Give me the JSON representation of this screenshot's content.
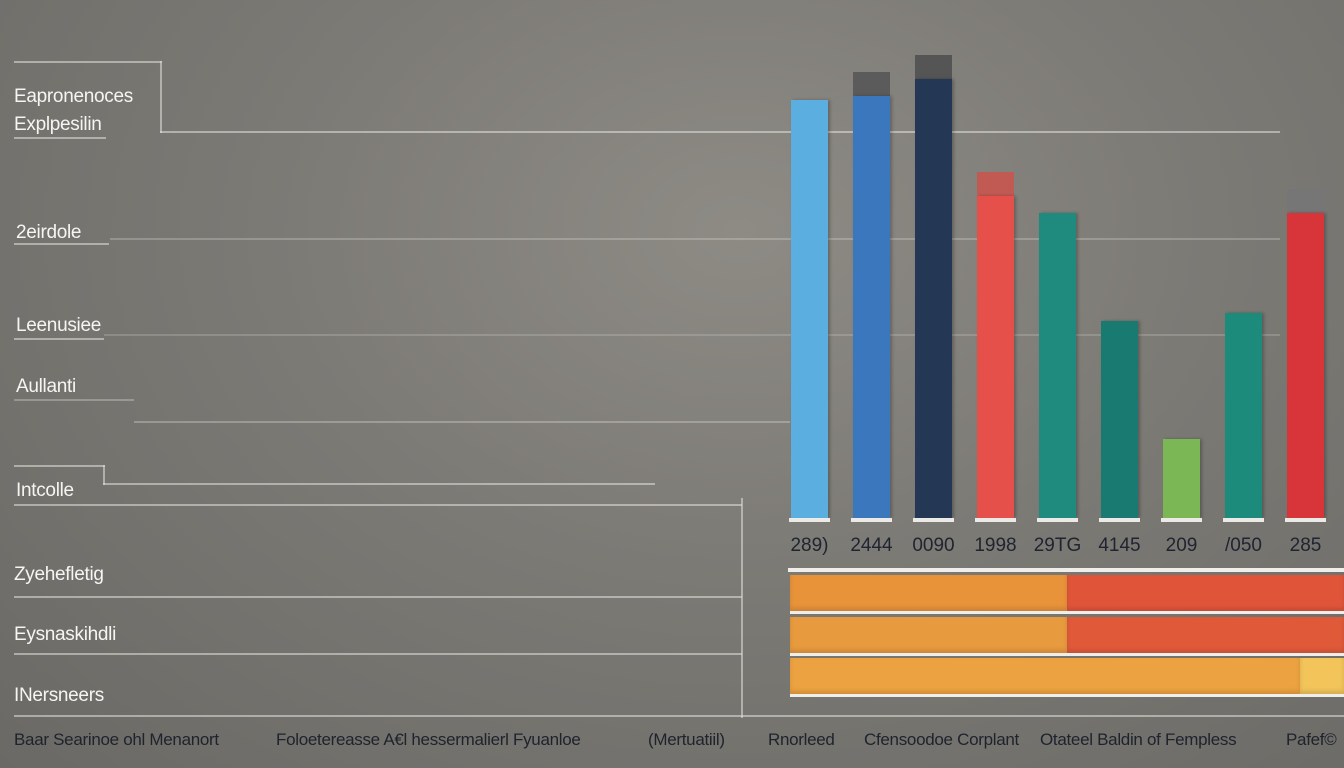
{
  "chart_data": {
    "type": "bar",
    "row_labels": [
      "Eapronenoces",
      "Explpesilin",
      "2eirdole",
      "Leenusiee",
      "Aullanti",
      "Intcolle",
      "Zyehefletig",
      "Eysnaskihdli",
      "INersneers"
    ],
    "bar_value_labels": [
      "289)",
      "2444",
      "0090",
      "1998",
      "29TG",
      "4145",
      "209",
      "/050",
      "285"
    ],
    "bars": [
      {
        "value": 100,
        "color": "#5aaee0",
        "cap": null
      },
      {
        "value": 101,
        "color": "#3a77bd",
        "cap": "#5b5b5b"
      },
      {
        "value": 105,
        "color": "#243754",
        "cap": "#555555"
      },
      {
        "value": 77,
        "color": "#e5514a",
        "cap": "#c05a52"
      },
      {
        "value": 73,
        "color": "#1f8a7e",
        "cap": null
      },
      {
        "value": 47,
        "color": "#187a70",
        "cap": null
      },
      {
        "value": 19,
        "color": "#7bb754",
        "cap": null
      },
      {
        "value": 49,
        "color": "#1d8b7b",
        "cap": null
      },
      {
        "value": 73,
        "color": "#d8353a",
        "cap": "#767676"
      }
    ],
    "stacked_rows": [
      [
        {
          "value": 50,
          "color": "#e8923a"
        },
        {
          "value": 50,
          "color": "#e0553a"
        }
      ],
      [
        {
          "value": 50,
          "color": "#e89a3e"
        },
        {
          "value": 50,
          "color": "#e05a3a"
        }
      ],
      [
        {
          "value": 92,
          "color": "#eca240"
        },
        {
          "value": 8,
          "color": "#f2c45a"
        }
      ]
    ],
    "x_axis_labels": [
      "Baar Searinoe ohl Menanort",
      "Foloetereasse A€l hessermalierl Fyuanloe",
      "(Mertuatiil)",
      "Rnorleed",
      "Cfensoodoe Corplant",
      "Otateel Baldin of Fempless",
      "Pafef©"
    ],
    "ylim": [
      0,
      110
    ]
  }
}
